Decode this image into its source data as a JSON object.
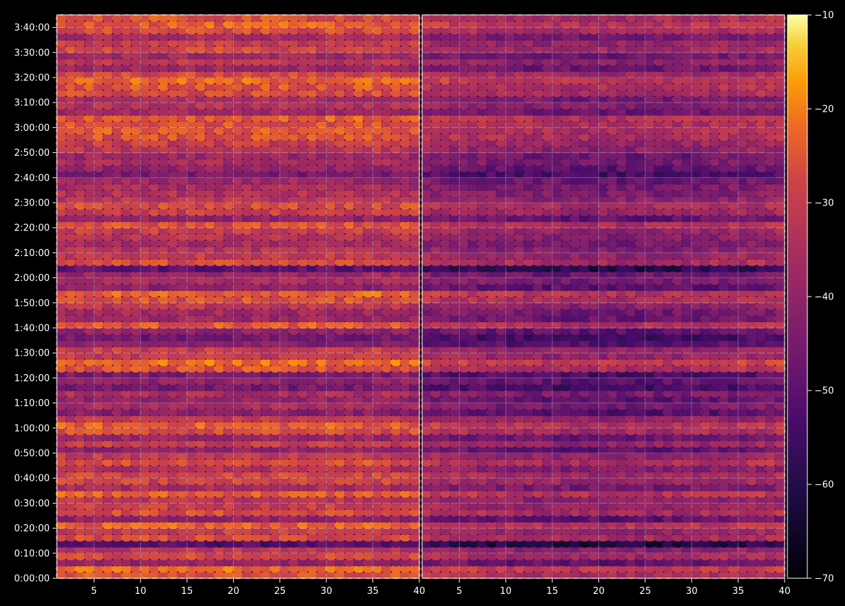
{
  "chart_data": {
    "type": "heatmap",
    "title": "",
    "panels": [
      {
        "name": "",
        "xlim": [
          1,
          40
        ],
        "xticks": [
          "5",
          "10",
          "15",
          "20",
          "25",
          "30",
          "35",
          "40"
        ]
      },
      {
        "name": "",
        "xlim": [
          1,
          40
        ],
        "xticks": [
          "5",
          "10",
          "15",
          "20",
          "25",
          "30",
          "35",
          "40"
        ]
      }
    ],
    "y_axis": {
      "ylim_seconds": [
        0,
        13500
      ],
      "tick_labels": [
        "0:00:00",
        "0:10:00",
        "0:20:00",
        "0:30:00",
        "0:40:00",
        "0:50:00",
        "1:00:00",
        "1:10:00",
        "1:20:00",
        "1:30:00",
        "1:40:00",
        "1:50:00",
        "2:00:00",
        "2:10:00",
        "2:20:00",
        "2:30:00",
        "2:40:00",
        "2:50:00",
        "3:00:00",
        "3:10:00",
        "3:20:00",
        "3:30:00",
        "3:40:00"
      ],
      "tick_seconds": [
        0,
        600,
        1200,
        1800,
        2400,
        3000,
        3600,
        4200,
        4800,
        5400,
        6000,
        6600,
        7200,
        7800,
        8400,
        9000,
        9600,
        10200,
        10800,
        11400,
        12000,
        12600,
        13200
      ]
    },
    "colorbar": {
      "colormap": "inferno",
      "range": [
        -70,
        -10
      ],
      "tick_labels": [
        "−10",
        "−20",
        "−30",
        "−40",
        "−50",
        "−60",
        "−70"
      ],
      "tick_values": [
        -10,
        -20,
        -30,
        -40,
        -50,
        -60,
        -70
      ]
    },
    "grid": true,
    "band_levels": [
      [
        0,
        -26
      ],
      [
        150,
        -22
      ],
      [
        300,
        -40
      ],
      [
        450,
        -28
      ],
      [
        600,
        -32
      ],
      [
        750,
        -52
      ],
      [
        900,
        -27
      ],
      [
        1050,
        -30
      ],
      [
        1200,
        -24
      ],
      [
        1350,
        -40
      ],
      [
        1500,
        -27
      ],
      [
        1650,
        -30
      ],
      [
        1800,
        -32
      ],
      [
        1950,
        -24
      ],
      [
        2100,
        -36
      ],
      [
        2250,
        -29
      ],
      [
        2400,
        -28
      ],
      [
        2550,
        -34
      ],
      [
        2700,
        -26
      ],
      [
        2850,
        -30
      ],
      [
        3000,
        -40
      ],
      [
        3150,
        -30
      ],
      [
        3300,
        -38
      ],
      [
        3450,
        -27
      ],
      [
        3600,
        -24
      ],
      [
        3750,
        -31
      ],
      [
        3900,
        -42
      ],
      [
        4050,
        -36
      ],
      [
        4200,
        -40
      ],
      [
        4350,
        -35
      ],
      [
        4500,
        -45
      ],
      [
        4650,
        -40
      ],
      [
        4800,
        -44
      ],
      [
        4950,
        -26
      ],
      [
        5100,
        -22
      ],
      [
        5250,
        -30
      ],
      [
        5400,
        -30
      ],
      [
        5550,
        -42
      ],
      [
        5700,
        -46
      ],
      [
        5850,
        -40
      ],
      [
        6000,
        -25
      ],
      [
        6150,
        -38
      ],
      [
        6300,
        -37
      ],
      [
        6450,
        -32
      ],
      [
        6600,
        -26
      ],
      [
        6750,
        -23
      ],
      [
        6900,
        -41
      ],
      [
        7050,
        -36
      ],
      [
        7200,
        -38
      ],
      [
        7350,
        -50
      ],
      [
        7500,
        -27
      ],
      [
        7650,
        -30
      ],
      [
        7800,
        -33
      ],
      [
        7950,
        -36
      ],
      [
        8100,
        -33
      ],
      [
        8250,
        -30
      ],
      [
        8400,
        -26
      ],
      [
        8550,
        -40
      ],
      [
        8700,
        -30
      ],
      [
        8850,
        -27
      ],
      [
        9000,
        -32
      ],
      [
        9150,
        -34
      ],
      [
        9300,
        -36
      ],
      [
        9450,
        -38
      ],
      [
        9600,
        -45
      ],
      [
        9750,
        -40
      ],
      [
        9900,
        -36
      ],
      [
        10050,
        -38
      ],
      [
        10200,
        -32
      ],
      [
        10350,
        -30
      ],
      [
        10500,
        -26
      ],
      [
        10650,
        -25
      ],
      [
        10800,
        -26
      ],
      [
        10950,
        -24
      ],
      [
        11100,
        -38
      ],
      [
        11250,
        -33
      ],
      [
        11400,
        -36
      ],
      [
        11550,
        -27
      ],
      [
        11700,
        -25
      ],
      [
        11850,
        -23
      ],
      [
        12000,
        -28
      ],
      [
        12150,
        -38
      ],
      [
        12300,
        -32
      ],
      [
        12450,
        -37
      ],
      [
        12600,
        -28
      ],
      [
        12750,
        -30
      ],
      [
        12900,
        -36
      ],
      [
        13050,
        -27
      ],
      [
        13200,
        -24
      ],
      [
        13350,
        -26
      ]
    ]
  }
}
